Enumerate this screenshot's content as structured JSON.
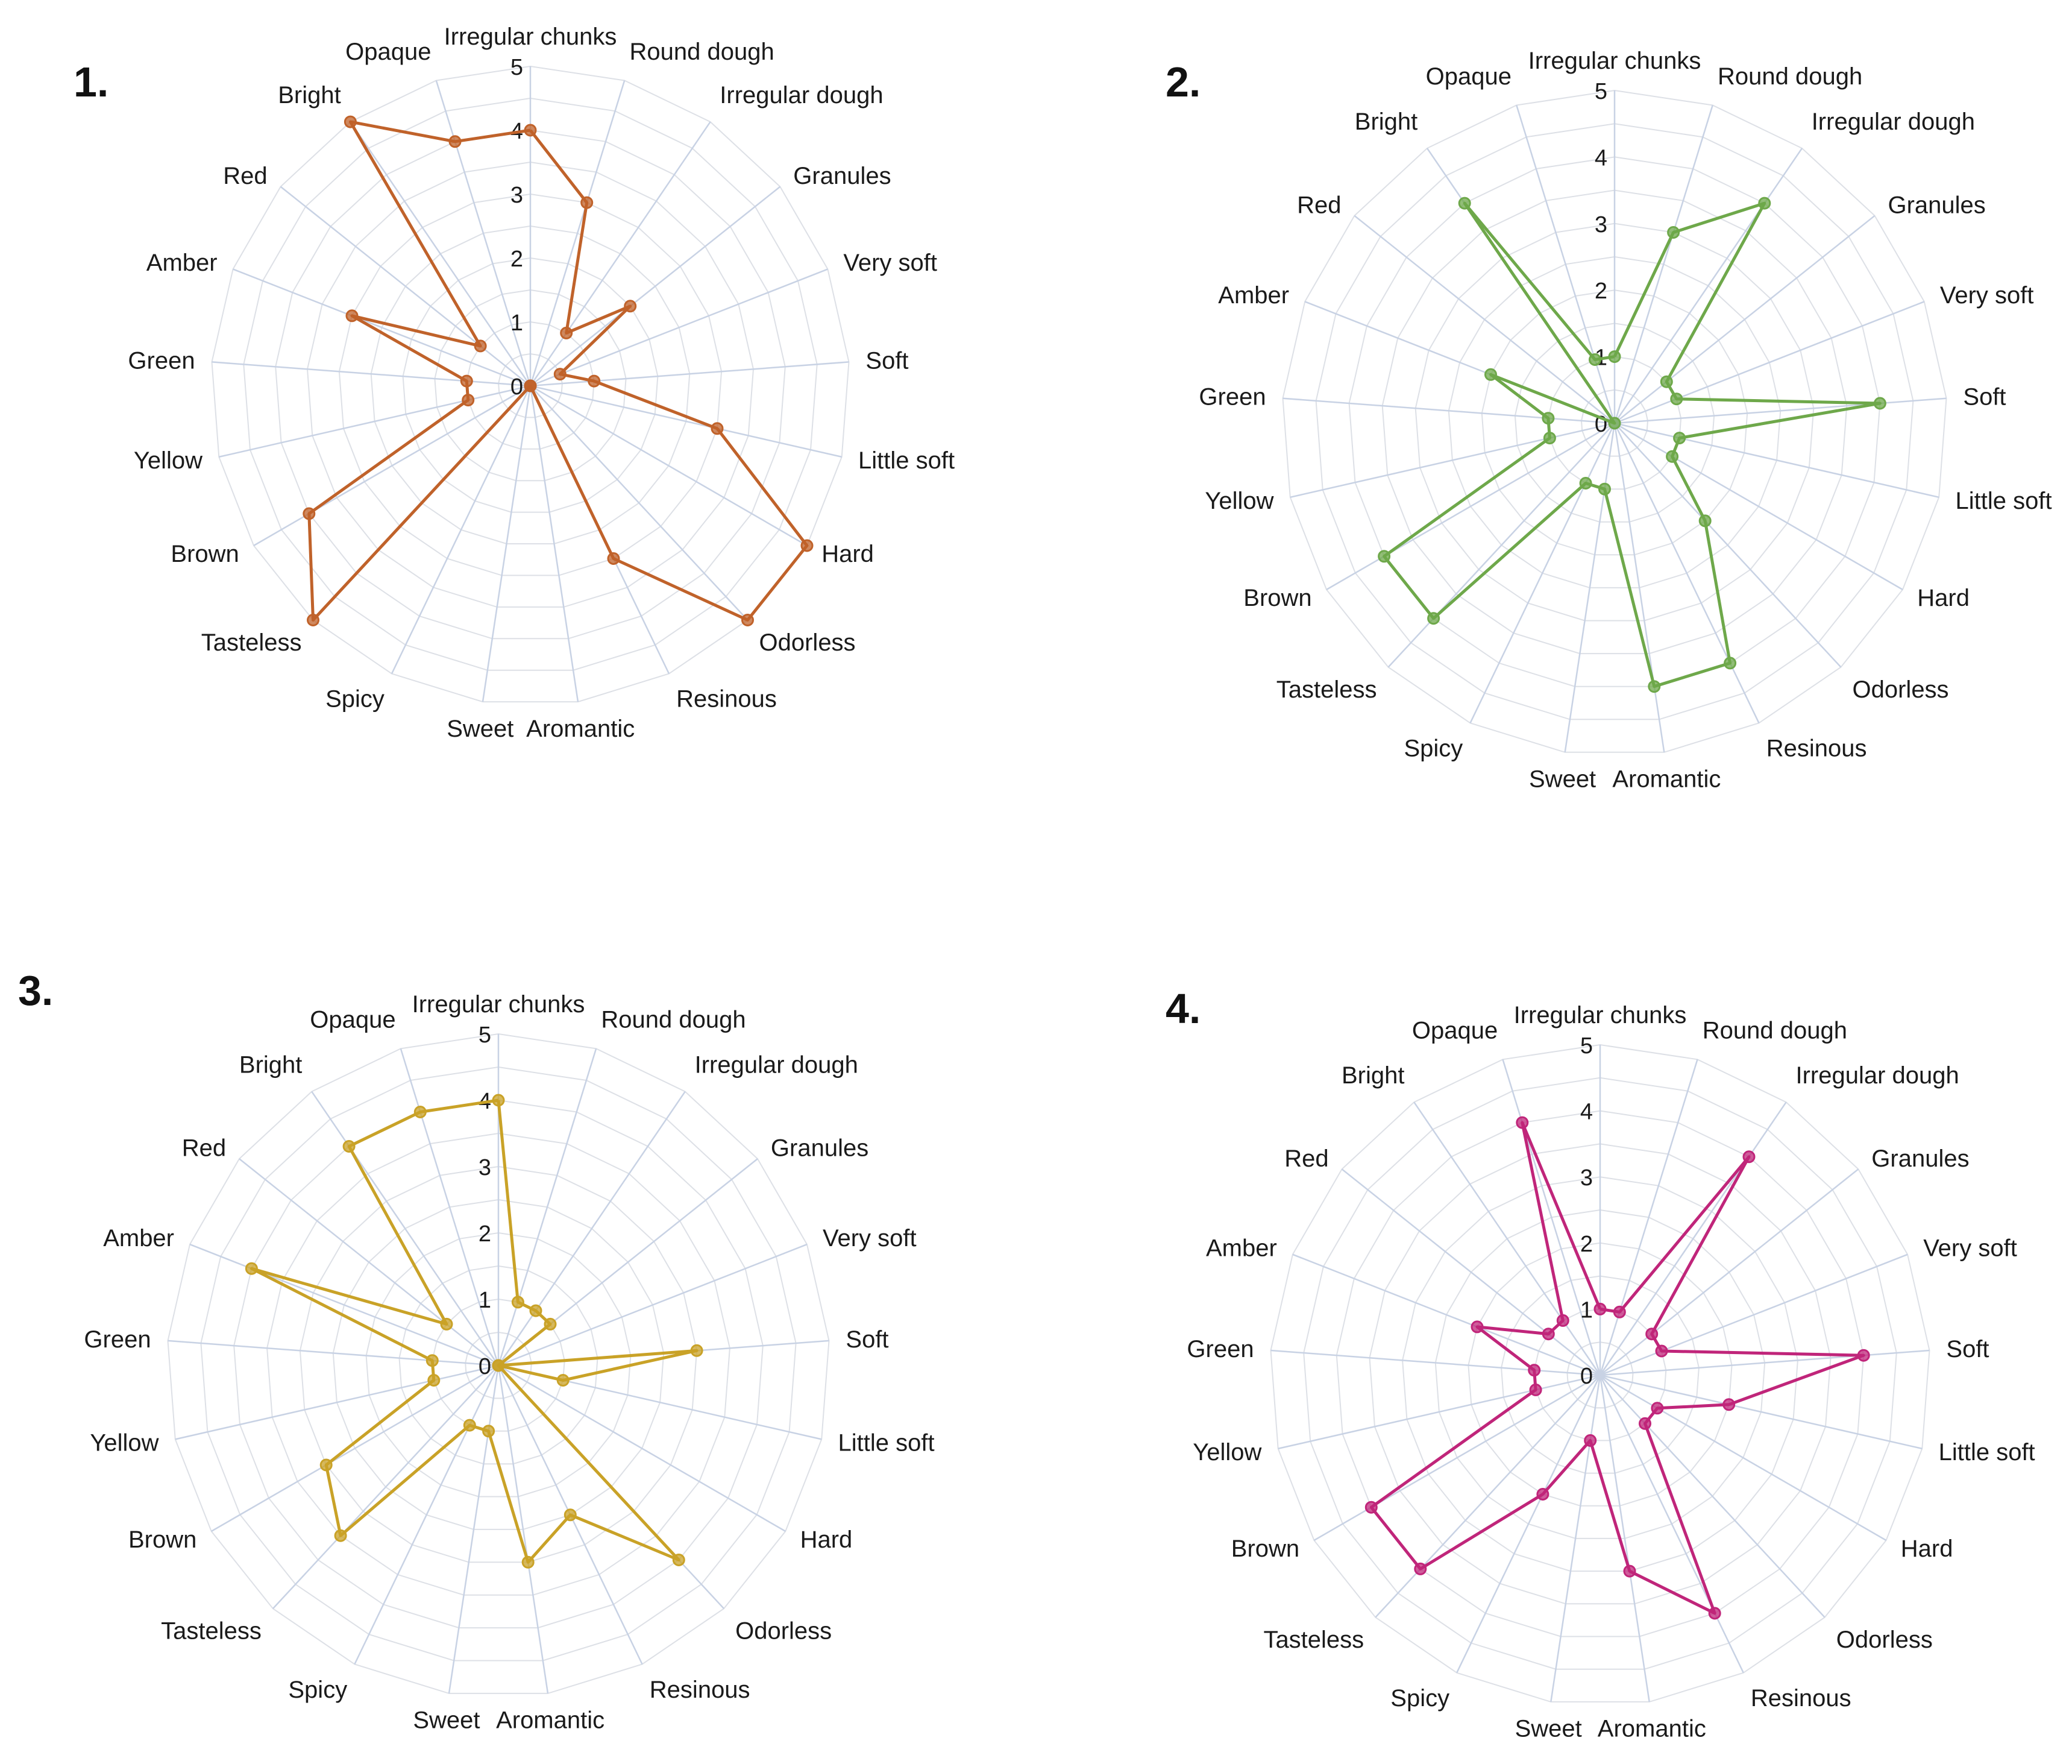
{
  "panels": [
    {
      "label": "1.",
      "color": "#c0622a"
    },
    {
      "label": "2.",
      "color": "#6ea84a"
    },
    {
      "label": "3.",
      "color": "#c9a227"
    },
    {
      "label": "4.",
      "color": "#c0257a"
    }
  ],
  "chart_data": [
    {
      "type": "radar",
      "categories": [
        "Irregular chunks",
        "Round dough",
        "Irregular dough",
        "Granules",
        "Very soft",
        "Soft",
        "Little soft",
        "Hard",
        "Odorless",
        "Resinous",
        "Aromantic",
        "Sweet",
        "Spicy",
        "Tasteless",
        "Brown",
        "Yellow",
        "Green",
        "Amber",
        "Red",
        "Bright",
        "Opaque"
      ],
      "ticks": [
        "0",
        "1",
        "2",
        "3",
        "4",
        "5"
      ],
      "rlim": [
        0,
        5
      ],
      "series": [
        {
          "values": [
            4,
            3,
            1,
            2,
            0.5,
            1,
            3,
            5,
            5,
            3,
            0,
            0,
            0,
            5,
            4,
            1,
            1,
            3,
            1,
            5,
            4
          ]
        }
      ]
    },
    {
      "type": "radar",
      "categories": [
        "Irregular chunks",
        "Round dough",
        "Irregular dough",
        "Granules",
        "Very soft",
        "Soft",
        "Little soft",
        "Hard",
        "Odorless",
        "Resinous",
        "Aromantic",
        "Sweet",
        "Spicy",
        "Tasteless",
        "Brown",
        "Yellow",
        "Green",
        "Amber",
        "Red",
        "Bright",
        "Opaque"
      ],
      "ticks": [
        "0",
        "1",
        "2",
        "3",
        "4",
        "5"
      ],
      "rlim": [
        0,
        5
      ],
      "series": [
        {
          "values": [
            1,
            3,
            4,
            1,
            1,
            4,
            1,
            1,
            2,
            4,
            4,
            1,
            1,
            4,
            4,
            1,
            1,
            2,
            0,
            4,
            1
          ]
        }
      ]
    },
    {
      "type": "radar",
      "categories": [
        "Irregular chunks",
        "Round dough",
        "Irregular dough",
        "Granules",
        "Very soft",
        "Soft",
        "Little soft",
        "Hard",
        "Odorless",
        "Resinous",
        "Aromantic",
        "Sweet",
        "Spicy",
        "Tasteless",
        "Brown",
        "Yellow",
        "Green",
        "Amber",
        "Red",
        "Bright",
        "Opaque"
      ],
      "ticks": [
        "0",
        "1",
        "2",
        "3",
        "4",
        "5"
      ],
      "rlim": [
        0,
        5
      ],
      "series": [
        {
          "values": [
            4,
            1,
            1,
            1,
            0,
            3,
            1,
            0,
            4,
            2.5,
            3,
            1,
            1,
            3.5,
            3,
            1,
            1,
            4,
            1,
            4,
            4
          ]
        }
      ]
    },
    {
      "type": "radar",
      "categories": [
        "Irregular chunks",
        "Round dough",
        "Irregular dough",
        "Granules",
        "Very soft",
        "Soft",
        "Little soft",
        "Hard",
        "Odorless",
        "Resinous",
        "Aromantic",
        "Sweet",
        "Spicy",
        "Tasteless",
        "Brown",
        "Yellow",
        "Green",
        "Amber",
        "Red",
        "Bright",
        "Opaque"
      ],
      "ticks": [
        "0",
        "1",
        "2",
        "3",
        "4",
        "5"
      ],
      "rlim": [
        0,
        5
      ],
      "series": [
        {
          "values": [
            1,
            1,
            4,
            1,
            1,
            4,
            2,
            1,
            1,
            4,
            3,
            1,
            2,
            4,
            4,
            1,
            1,
            2,
            1,
            1,
            4
          ]
        }
      ]
    }
  ]
}
